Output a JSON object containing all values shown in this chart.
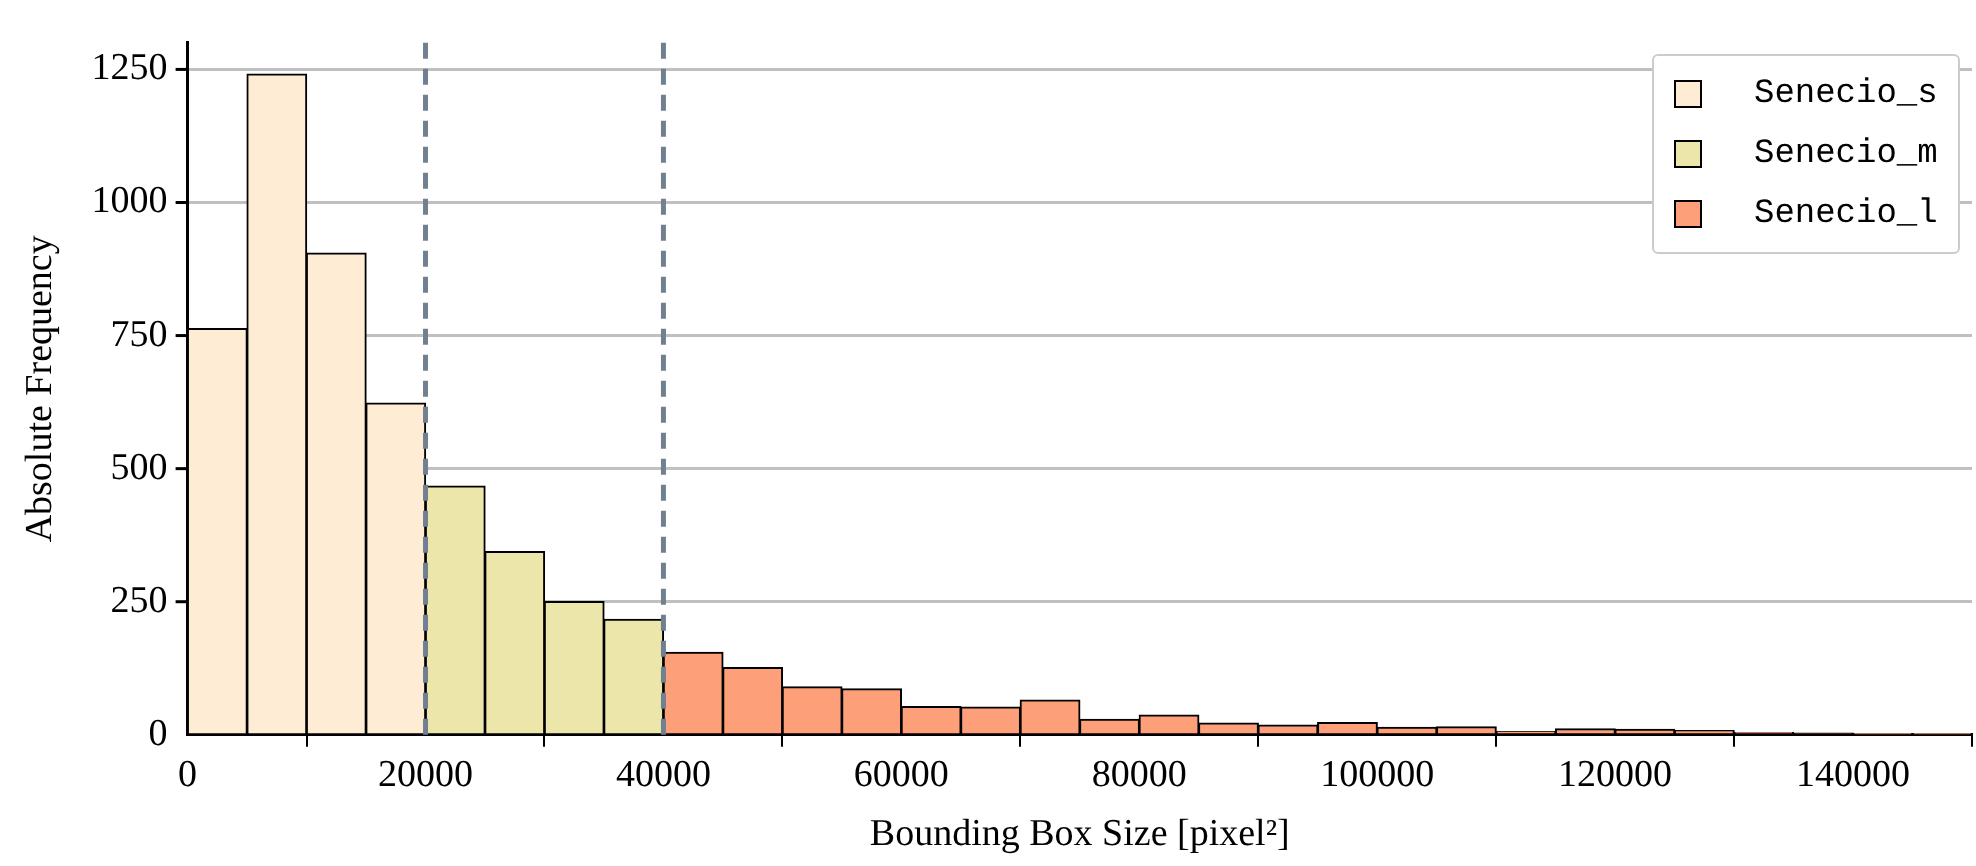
{
  "chart_data": {
    "type": "histogram",
    "xlabel": "Bounding Box Size [pixel²]",
    "ylabel": "Absolute Frequency",
    "bins": [
      0,
      5000,
      10000,
      15000,
      20000,
      25000,
      30000,
      35000,
      40000,
      45000,
      50000,
      55000,
      60000,
      65000,
      70000,
      75000,
      80000,
      85000,
      90000,
      95000,
      100000,
      105000,
      110000,
      115000,
      120000,
      125000,
      130000,
      135000,
      140000,
      145000,
      150000
    ],
    "series": [
      {
        "name": "Senecio_s",
        "color": "#feecd4",
        "values": [
          763,
          1241,
          905,
          623,
          null,
          null,
          null,
          null,
          null,
          null,
          null,
          null,
          null,
          null,
          null,
          null,
          null,
          null,
          null,
          null,
          null,
          null,
          null,
          null,
          null,
          null,
          null,
          null,
          null,
          null
        ]
      },
      {
        "name": "Senecio_m",
        "color": "#ece6ab",
        "values": [
          null,
          null,
          null,
          null,
          467,
          344,
          250,
          217,
          null,
          null,
          null,
          null,
          null,
          null,
          null,
          null,
          null,
          null,
          null,
          null,
          null,
          null,
          null,
          null,
          null,
          null,
          null,
          null,
          null,
          null
        ]
      },
      {
        "name": "Senecio_l",
        "color": "#fda07a",
        "values": [
          null,
          null,
          null,
          null,
          null,
          null,
          null,
          null,
          155,
          126,
          90,
          86,
          53,
          52,
          65,
          29,
          37,
          22,
          18,
          23,
          14,
          15,
          6,
          11,
          10,
          8,
          4,
          3,
          2,
          2
        ]
      }
    ],
    "xlim": [
      0,
      150000
    ],
    "xticks": [
      0,
      20000,
      40000,
      60000,
      80000,
      100000,
      120000,
      140000
    ],
    "ylim": [
      0,
      1300
    ],
    "yticks": [
      0,
      250,
      500,
      750,
      1000,
      1250
    ],
    "grid": "y",
    "legend": "top right",
    "ref_lines": [
      {
        "axis": "x",
        "value": 20000,
        "color": "#708090",
        "line_style": "dashed"
      },
      {
        "axis": "x",
        "value": 40000,
        "color": "#708090",
        "line_style": "dashed"
      }
    ]
  }
}
